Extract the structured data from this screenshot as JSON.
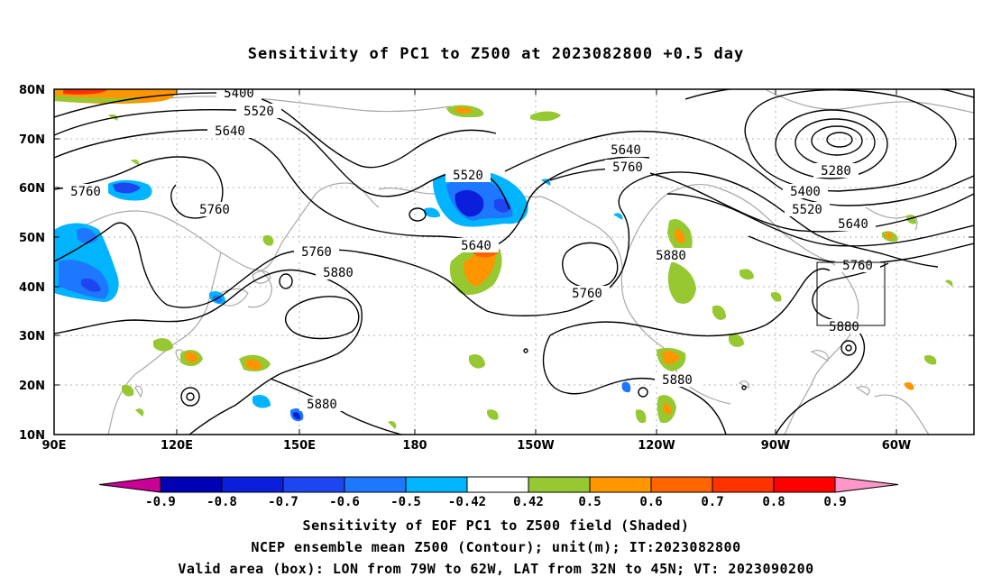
{
  "title": "Sensitivity of PC1 to Z500 at 2023082800 +0.5 day",
  "map": {
    "lat_ticks": [
      "80N",
      "70N",
      "60N",
      "50N",
      "40N",
      "30N",
      "20N",
      "10N"
    ],
    "lon_ticks": [
      "90E",
      "120E",
      "150E",
      "180",
      "150W",
      "120W",
      "90W",
      "60W"
    ],
    "contour_labels": [
      {
        "text": "5400"
      },
      {
        "text": "5520"
      },
      {
        "text": "5640"
      },
      {
        "text": "5760"
      },
      {
        "text": "5760"
      },
      {
        "text": "5520"
      },
      {
        "text": "5640"
      },
      {
        "text": "5760"
      },
      {
        "text": "5880"
      },
      {
        "text": "5760"
      },
      {
        "text": "5640"
      },
      {
        "text": "5760"
      },
      {
        "text": "5880"
      },
      {
        "text": "5880"
      },
      {
        "text": "5880"
      },
      {
        "text": "5280"
      },
      {
        "text": "5400"
      },
      {
        "text": "5520"
      },
      {
        "text": "5640"
      },
      {
        "text": "5760"
      },
      {
        "text": "5880"
      }
    ],
    "valid_box": {
      "lon_from": "79W",
      "lon_to": "62W",
      "lat_from": "32N",
      "lat_to": "45N"
    }
  },
  "colorbar": {
    "labels": [
      "-0.9",
      "-0.8",
      "-0.7",
      "-0.6",
      "-0.5",
      "-0.42",
      "0.42",
      "0.5",
      "0.6",
      "0.7",
      "0.8",
      "0.9"
    ],
    "colors": [
      "#c80096",
      "#0000b4",
      "#0a1edc",
      "#1e46f0",
      "#1e78ff",
      "#00b4ff",
      "#00d2ff",
      "#ffffff",
      "#96c832",
      "#ff9600",
      "#ff6400",
      "#ff3200",
      "#ff0000",
      "#ff96c8"
    ]
  },
  "captions": [
    "Sensitivity of EOF PC1 to Z500 field (Shaded)",
    "NCEP ensemble mean Z500 (Contour); unit(m); IT:2023082800",
    "Valid area (box): LON from 79W to 62W, LAT from 32N to 45N; VT: 2023090200"
  ]
}
